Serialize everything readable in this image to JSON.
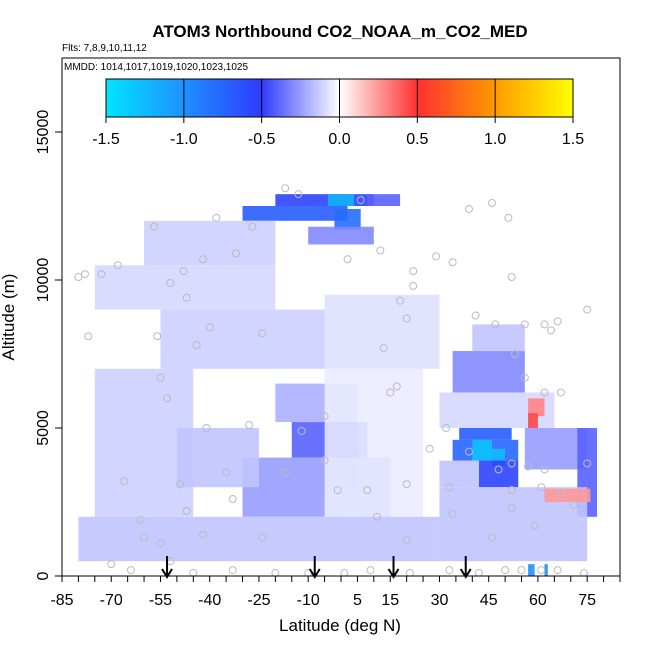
{
  "chart_data": {
    "type": "heatmap",
    "title": "ATOM3 Northbound CO2_NOAA_m_CO2_MED",
    "flights_label": "Flts: 7,8,9,10,11,12",
    "dates_label": "MMDD: 1014,1017,1019,1020,1023,1025",
    "xlabel": "Latitude (deg N)",
    "ylabel": "Altitude (m)",
    "xlim": [
      -85,
      85
    ],
    "ylim": [
      0,
      17500
    ],
    "x_ticks": [
      -85,
      -70,
      -55,
      -40,
      -25,
      -10,
      5,
      15,
      30,
      45,
      60,
      75
    ],
    "y_ticks": [
      0,
      5000,
      10000,
      15000
    ],
    "colorbar": {
      "range": [
        -1.5,
        1.5
      ],
      "ticks": [
        "-1.5",
        "-1.0",
        "-0.5",
        "0.0",
        "0.5",
        "1.0",
        "1.5"
      ],
      "colors": [
        "#00e5ff",
        "#1e90ff",
        "#2f3bff",
        "#ffffff",
        "#ff3030",
        "#ff9a00",
        "#ffff00"
      ]
    },
    "profile_latitudes": [
      -53,
      -8,
      16,
      38
    ],
    "cells": [
      {
        "lat0": -20,
        "lat1": 10,
        "alt0": 12500,
        "alt1": 12900,
        "v": -0.55
      },
      {
        "lat0": -4,
        "lat1": 4,
        "alt0": 12500,
        "alt1": 12900,
        "v": -1.2
      },
      {
        "lat0": 8,
        "lat1": 18,
        "alt0": 12500,
        "alt1": 12900,
        "v": -0.4
      },
      {
        "lat0": -30,
        "lat1": 2,
        "alt0": 12000,
        "alt1": 12500,
        "v": -0.7
      },
      {
        "lat0": -2,
        "lat1": 6,
        "alt0": 11700,
        "alt1": 12400,
        "v": -0.8
      },
      {
        "lat0": -10,
        "lat1": 10,
        "alt0": 11200,
        "alt1": 11800,
        "v": -0.3
      },
      {
        "lat0": -60,
        "lat1": -20,
        "alt0": 10500,
        "alt1": 12000,
        "v": -0.12
      },
      {
        "lat0": -75,
        "lat1": -20,
        "alt0": 9000,
        "alt1": 10500,
        "v": -0.1
      },
      {
        "lat0": -55,
        "lat1": -5,
        "alt0": 7000,
        "alt1": 9000,
        "v": -0.12
      },
      {
        "lat0": -5,
        "lat1": 30,
        "alt0": 7000,
        "alt1": 9500,
        "v": -0.08
      },
      {
        "lat0": -20,
        "lat1": 5,
        "alt0": 5200,
        "alt1": 6500,
        "v": -0.2
      },
      {
        "lat0": -15,
        "lat1": 8,
        "alt0": 4000,
        "alt1": 5200,
        "v": -0.4
      },
      {
        "lat0": -5,
        "lat1": 5,
        "alt0": 3000,
        "alt1": 5200,
        "v": -0.5
      },
      {
        "lat0": -30,
        "lat1": 15,
        "alt0": 2000,
        "alt1": 4000,
        "v": -0.25
      },
      {
        "lat0": -75,
        "lat1": -45,
        "alt0": 2000,
        "alt1": 7000,
        "v": -0.12
      },
      {
        "lat0": -50,
        "lat1": -25,
        "alt0": 3000,
        "alt1": 5000,
        "v": -0.15
      },
      {
        "lat0": -80,
        "lat1": 30,
        "alt0": 500,
        "alt1": 2000,
        "v": -0.15
      },
      {
        "lat0": 34,
        "lat1": 56,
        "alt0": 6200,
        "alt1": 7600,
        "v": -0.3
      },
      {
        "lat0": 40,
        "lat1": 56,
        "alt0": 7600,
        "alt1": 8500,
        "v": -0.15
      },
      {
        "lat0": 30,
        "lat1": 65,
        "alt0": 5000,
        "alt1": 6200,
        "v": -0.1
      },
      {
        "lat0": 36,
        "lat1": 52,
        "alt0": 4600,
        "alt1": 5000,
        "v": -0.7
      },
      {
        "lat0": 34,
        "lat1": 54,
        "alt0": 3900,
        "alt1": 4600,
        "v": -0.75
      },
      {
        "lat0": 40,
        "lat1": 46,
        "alt0": 3900,
        "alt1": 4600,
        "v": -1.3
      },
      {
        "lat0": 46,
        "lat1": 50,
        "alt0": 3700,
        "alt1": 4300,
        "v": -1.25
      },
      {
        "lat0": 42,
        "lat1": 54,
        "alt0": 3000,
        "alt1": 3900,
        "v": -0.55
      },
      {
        "lat0": 30,
        "lat1": 42,
        "alt0": 3000,
        "alt1": 3900,
        "v": -0.15
      },
      {
        "lat0": 56,
        "lat1": 75,
        "alt0": 3600,
        "alt1": 5000,
        "v": -0.25
      },
      {
        "lat0": 72,
        "lat1": 78,
        "alt0": 2000,
        "alt1": 5000,
        "v": -0.4
      },
      {
        "lat0": 30,
        "lat1": 75,
        "alt0": 500,
        "alt1": 3000,
        "v": -0.15
      },
      {
        "lat0": 57,
        "lat1": 62,
        "alt0": 5400,
        "alt1": 6000,
        "v": 0.3
      },
      {
        "lat0": 57,
        "lat1": 60,
        "alt0": 5000,
        "alt1": 5500,
        "v": 0.45
      },
      {
        "lat0": 62,
        "lat1": 76,
        "alt0": 2500,
        "alt1": 2950,
        "v": 0.25
      },
      {
        "lat0": 57,
        "lat1": 59,
        "alt0": 0,
        "alt1": 400,
        "v": -1.0
      },
      {
        "lat0": 62,
        "lat1": 63,
        "alt0": 0,
        "alt1": 400,
        "v": -0.95
      },
      {
        "lat0": -5,
        "lat1": 25,
        "alt0": 2000,
        "alt1": 7000,
        "v": -0.05
      }
    ],
    "observations": [
      [
        -17,
        13100
      ],
      [
        -57,
        11800
      ],
      [
        -38,
        12100
      ],
      [
        -27,
        11800
      ],
      [
        -68,
        10500
      ],
      [
        -73,
        10200
      ],
      [
        -78,
        10200
      ],
      [
        -80,
        10100
      ],
      [
        -48,
        10300
      ],
      [
        -42,
        10700
      ],
      [
        -32,
        10900
      ],
      [
        -52,
        9900
      ],
      [
        -47,
        9400
      ],
      [
        -40,
        8400
      ],
      [
        -24,
        8200
      ],
      [
        -56,
        8100
      ],
      [
        -44,
        7800
      ],
      [
        -55,
        6700
      ],
      [
        -53,
        6000
      ],
      [
        -41,
        5000
      ],
      [
        -28,
        5100
      ],
      [
        -12,
        4900
      ],
      [
        -5,
        5400
      ],
      [
        -35,
        3500
      ],
      [
        -49,
        3100
      ],
      [
        -66,
        3200
      ],
      [
        -33,
        2600
      ],
      [
        -1,
        2900
      ],
      [
        8,
        2900
      ],
      [
        11,
        2000
      ],
      [
        -47,
        2200
      ],
      [
        -77,
        8100
      ],
      [
        6,
        12700
      ],
      [
        -13,
        12900
      ],
      [
        12,
        11000
      ],
      [
        22,
        10300
      ],
      [
        18,
        9300
      ],
      [
        20,
        8700
      ],
      [
        29,
        10800
      ],
      [
        34,
        10600
      ],
      [
        39,
        12400
      ],
      [
        46,
        12600
      ],
      [
        51,
        12100
      ],
      [
        52,
        10100
      ],
      [
        41,
        8800
      ],
      [
        47,
        8500
      ],
      [
        56,
        8500
      ],
      [
        62,
        8500
      ],
      [
        64,
        8300
      ],
      [
        66,
        8600
      ],
      [
        75,
        9000
      ],
      [
        53,
        7500
      ],
      [
        56,
        6700
      ],
      [
        62,
        6200
      ],
      [
        67,
        6200
      ],
      [
        15,
        6200
      ],
      [
        32,
        5000
      ],
      [
        27,
        4300
      ],
      [
        39,
        4200
      ],
      [
        48,
        3600
      ],
      [
        52,
        3800
      ],
      [
        57,
        3700
      ],
      [
        62,
        3600
      ],
      [
        75,
        3800
      ],
      [
        20,
        3100
      ],
      [
        33,
        3000
      ],
      [
        52,
        2900
      ],
      [
        61,
        3000
      ],
      [
        67,
        2800
      ],
      [
        52,
        2300
      ],
      [
        59,
        1700
      ],
      [
        71,
        2400
      ],
      [
        20,
        1200
      ],
      [
        34,
        2100
      ],
      [
        46,
        1300
      ],
      [
        -61,
        1900
      ],
      [
        -60,
        1300
      ],
      [
        -55,
        1100
      ],
      [
        -42,
        1400
      ],
      [
        -70,
        400
      ],
      [
        -64,
        200
      ],
      [
        -52,
        500
      ],
      [
        -45,
        100
      ],
      [
        -33,
        200
      ],
      [
        -20,
        100
      ],
      [
        -10,
        100
      ],
      [
        1,
        100
      ],
      [
        9,
        200
      ],
      [
        21,
        100
      ],
      [
        33,
        200
      ],
      [
        42,
        100
      ],
      [
        50,
        200
      ],
      [
        55,
        200
      ],
      [
        61,
        200
      ],
      [
        66,
        200
      ],
      [
        74,
        100
      ],
      [
        -5,
        3900
      ],
      [
        -17,
        3500
      ],
      [
        -24,
        1300
      ],
      [
        17,
        6400
      ],
      [
        13,
        7700
      ],
      [
        22,
        9800
      ],
      [
        2,
        10700
      ]
    ]
  }
}
